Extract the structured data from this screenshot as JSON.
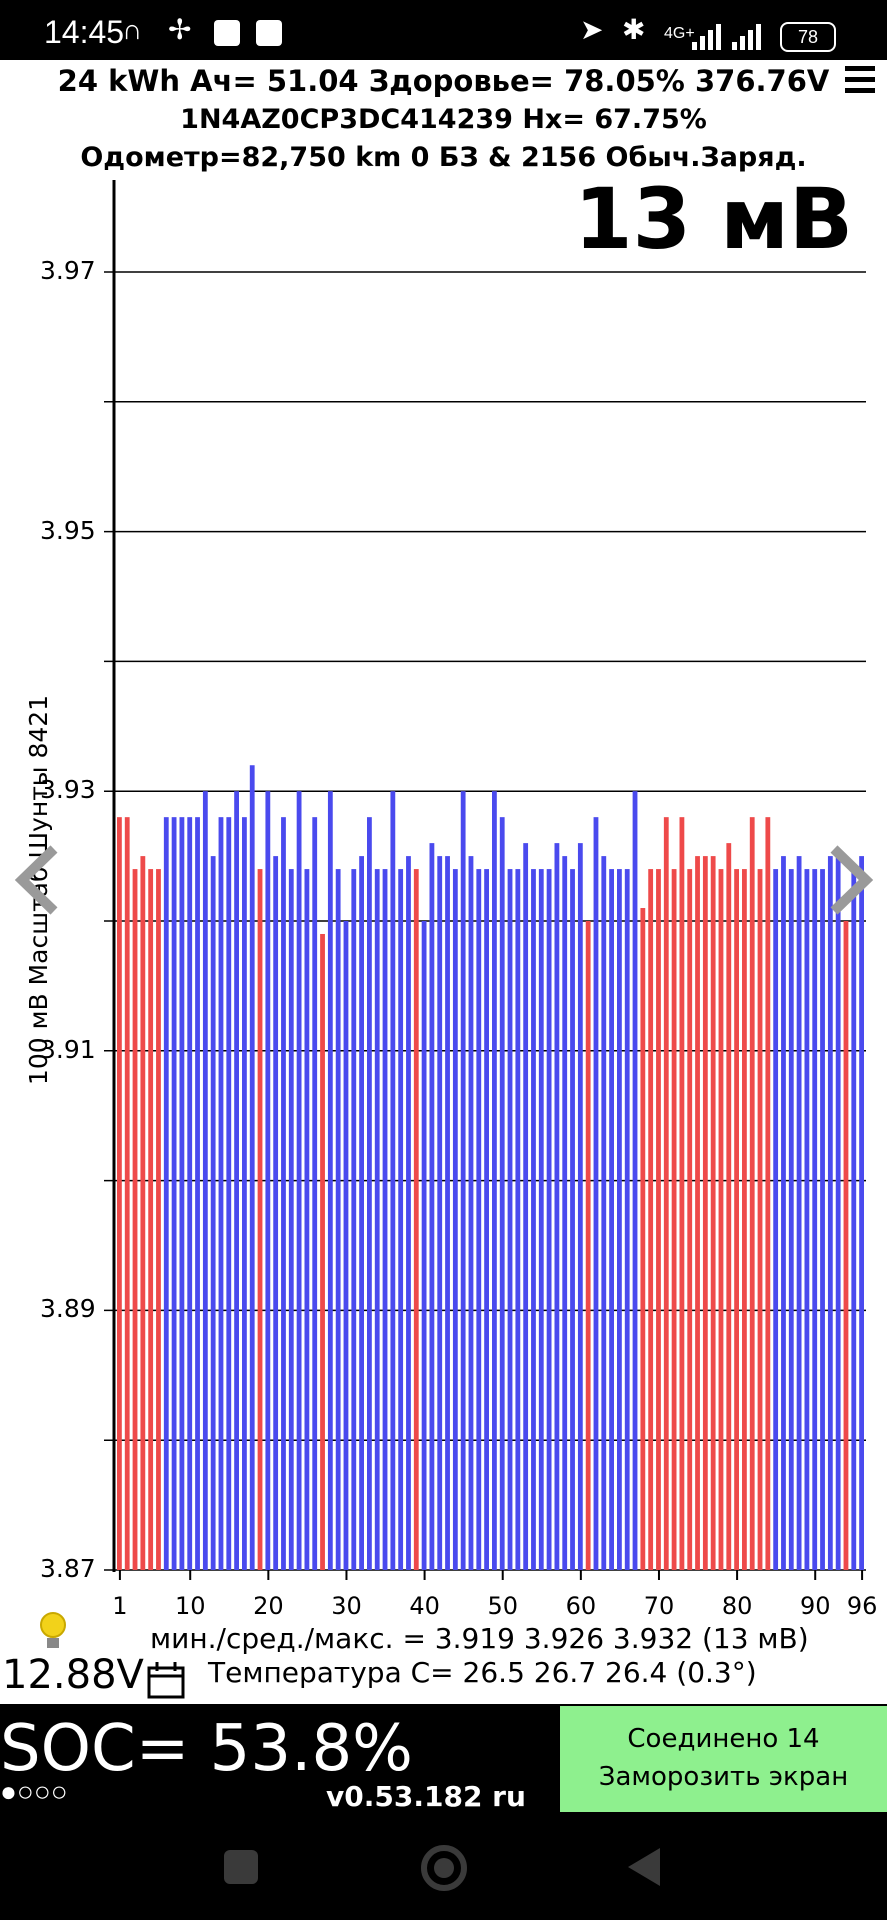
{
  "status_bar": {
    "time": "14:45",
    "network": "4G+",
    "battery": "78"
  },
  "header": {
    "line1": "24 kWh  Ач= 51.04  Здоровье= 78.05%   376.76V",
    "line2": "1N4AZ0CP3DC414239   Hx= 67.75%",
    "line3": "Одометр=82,750 km 0 БЗ & 2156 Обыч.Заряд."
  },
  "big_delta": "13 мВ",
  "chart_data": {
    "type": "bar",
    "ylabel": "100 мВ Масштаб  Шунты 8421",
    "ylim": [
      3.87,
      3.97
    ],
    "y_tick_labels": [
      "3.97",
      "3.95",
      "3.93",
      "3.91",
      "3.89",
      "3.87"
    ],
    "y_tick_values": [
      3.97,
      3.95,
      3.93,
      3.91,
      3.89,
      3.87
    ],
    "x_tick_labels": [
      "1",
      "10",
      "20",
      "30",
      "40",
      "50",
      "60",
      "70",
      "80",
      "90",
      "96"
    ],
    "x_tick_cells": [
      1,
      10,
      20,
      30,
      40,
      50,
      60,
      70,
      80,
      90,
      96
    ],
    "grid": true,
    "colors": {
      "red": "#ee4a4a",
      "blue": "#4a4aee"
    },
    "values": [
      3.928,
      3.928,
      3.924,
      3.925,
      3.924,
      3.924,
      3.928,
      3.928,
      3.928,
      3.928,
      3.928,
      3.93,
      3.925,
      3.928,
      3.928,
      3.93,
      3.928,
      3.932,
      3.924,
      3.93,
      3.925,
      3.928,
      3.924,
      3.93,
      3.924,
      3.928,
      3.919,
      3.93,
      3.924,
      3.92,
      3.924,
      3.925,
      3.928,
      3.924,
      3.924,
      3.93,
      3.924,
      3.925,
      3.924,
      3.92,
      3.926,
      3.925,
      3.925,
      3.924,
      3.93,
      3.925,
      3.924,
      3.924,
      3.93,
      3.928,
      3.924,
      3.924,
      3.926,
      3.924,
      3.924,
      3.924,
      3.926,
      3.925,
      3.924,
      3.926,
      3.92,
      3.928,
      3.925,
      3.924,
      3.924,
      3.924,
      3.93,
      3.921,
      3.924,
      3.924,
      3.928,
      3.924,
      3.928,
      3.924,
      3.925,
      3.925,
      3.925,
      3.924,
      3.926,
      3.924,
      3.924,
      3.928,
      3.924,
      3.928,
      3.924,
      3.925,
      3.924,
      3.925,
      3.924,
      3.924,
      3.924,
      3.925,
      3.925,
      3.92,
      3.924,
      3.925
    ],
    "bar_colors": [
      "red",
      "red",
      "red",
      "red",
      "red",
      "red",
      "blue",
      "blue",
      "blue",
      "blue",
      "blue",
      "blue",
      "blue",
      "blue",
      "blue",
      "blue",
      "blue",
      "blue",
      "red",
      "blue",
      "blue",
      "blue",
      "blue",
      "blue",
      "blue",
      "blue",
      "red",
      "blue",
      "blue",
      "blue",
      "blue",
      "blue",
      "blue",
      "blue",
      "blue",
      "blue",
      "blue",
      "blue",
      "red",
      "blue",
      "blue",
      "blue",
      "blue",
      "blue",
      "blue",
      "blue",
      "blue",
      "blue",
      "blue",
      "blue",
      "blue",
      "blue",
      "blue",
      "blue",
      "blue",
      "blue",
      "blue",
      "blue",
      "blue",
      "blue",
      "red",
      "blue",
      "blue",
      "blue",
      "blue",
      "blue",
      "blue",
      "red",
      "red",
      "red",
      "red",
      "red",
      "red",
      "red",
      "red",
      "red",
      "red",
      "red",
      "red",
      "red",
      "red",
      "red",
      "red",
      "red",
      "blue",
      "blue",
      "blue",
      "blue",
      "blue",
      "blue",
      "blue",
      "blue",
      "blue",
      "red",
      "blue",
      "blue"
    ]
  },
  "stats": {
    "minmax": "мин./сред./макс. = 3.919 3.926 3.932  (13 мВ)",
    "temperature": "Температура С= 26.5  26.7  26.4  (0.3°)",
    "aux_voltage": "12.88V"
  },
  "bottom": {
    "soc": "SOC= 53.8%",
    "soc_dots": "●○○○",
    "version": "v0.53.182 ru",
    "connect_status": "Соединено 14",
    "freeze_button": "Заморозить экран"
  }
}
